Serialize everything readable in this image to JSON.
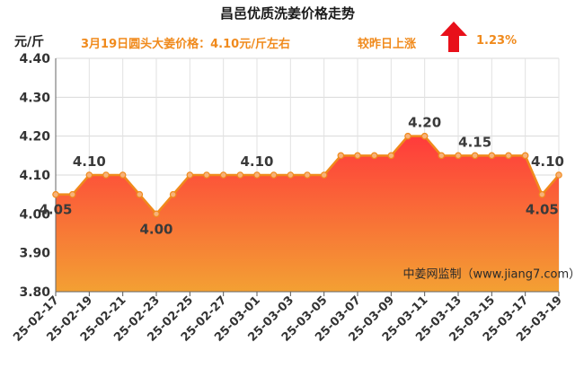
{
  "header": {
    "title": "昌邑优质洗姜价格走势",
    "unit": "元/斤",
    "price_note": "3月19日圆头大姜价格：4.10元/斤左右",
    "change_note": "较昨日上涨",
    "change_pct": "1.23%",
    "trend_icon": "up-arrow-icon"
  },
  "colors": {
    "line": "#f08a1c",
    "marker_fill": "#f7b27a",
    "area_top": "#ff3b3b",
    "area_bottom": "#f3a033",
    "arrow": "#e8101a",
    "text_accent": "#f08a1c"
  },
  "chart_data": {
    "type": "area",
    "title": "昌邑优质洗姜价格走势",
    "ylabel": "元/斤",
    "xlabel": "",
    "ylim": [
      3.8,
      4.4
    ],
    "yticks": [
      "3.80",
      "3.90",
      "4.00",
      "4.10",
      "4.20",
      "4.30",
      "4.40"
    ],
    "grid": true,
    "x": [
      "25-02-17",
      "25-02-18",
      "25-02-19",
      "25-02-20",
      "25-02-21",
      "25-02-22",
      "25-02-23",
      "25-02-24",
      "25-02-25",
      "25-02-26",
      "25-02-27",
      "25-02-28",
      "25-03-01",
      "25-03-02",
      "25-03-03",
      "25-03-04",
      "25-03-05",
      "25-03-06",
      "25-03-07",
      "25-03-08",
      "25-03-09",
      "25-03-10",
      "25-03-11",
      "25-03-12",
      "25-03-13",
      "25-03-14",
      "25-03-15",
      "25-03-16",
      "25-03-17",
      "25-03-18",
      "25-03-19"
    ],
    "xtick_labels": [
      "25-02-17",
      "25-02-19",
      "25-02-21",
      "25-02-23",
      "25-02-25",
      "25-02-27",
      "25-03-01",
      "25-03-03",
      "25-03-05",
      "25-03-07",
      "25-03-09",
      "25-03-11",
      "25-03-13",
      "25-03-15",
      "25-03-17",
      "25-03-19"
    ],
    "values": [
      4.05,
      4.05,
      4.1,
      4.1,
      4.1,
      4.05,
      4.0,
      4.05,
      4.1,
      4.1,
      4.1,
      4.1,
      4.1,
      4.1,
      4.1,
      4.1,
      4.1,
      4.15,
      4.15,
      4.15,
      4.15,
      4.2,
      4.2,
      4.15,
      4.15,
      4.15,
      4.15,
      4.15,
      4.15,
      4.05,
      4.1
    ],
    "data_labels": [
      {
        "x": "25-02-17",
        "text": "4.05",
        "pos": "below"
      },
      {
        "x": "25-02-19",
        "text": "4.10",
        "pos": "above"
      },
      {
        "x": "25-02-23",
        "text": "4.00",
        "pos": "below"
      },
      {
        "x": "25-03-01",
        "text": "4.10",
        "pos": "above"
      },
      {
        "x": "25-03-11",
        "text": "4.20",
        "pos": "above"
      },
      {
        "x": "25-03-14",
        "text": "4.15",
        "pos": "above"
      },
      {
        "x": "25-03-18",
        "text": "4.05",
        "pos": "below"
      },
      {
        "x": "25-03-19",
        "text": "4.10",
        "pos": "above"
      }
    ],
    "annotations": [
      {
        "text": "中姜网监制（www.jiang7.com）",
        "x": "25-03-15",
        "y": 3.85
      }
    ]
  }
}
